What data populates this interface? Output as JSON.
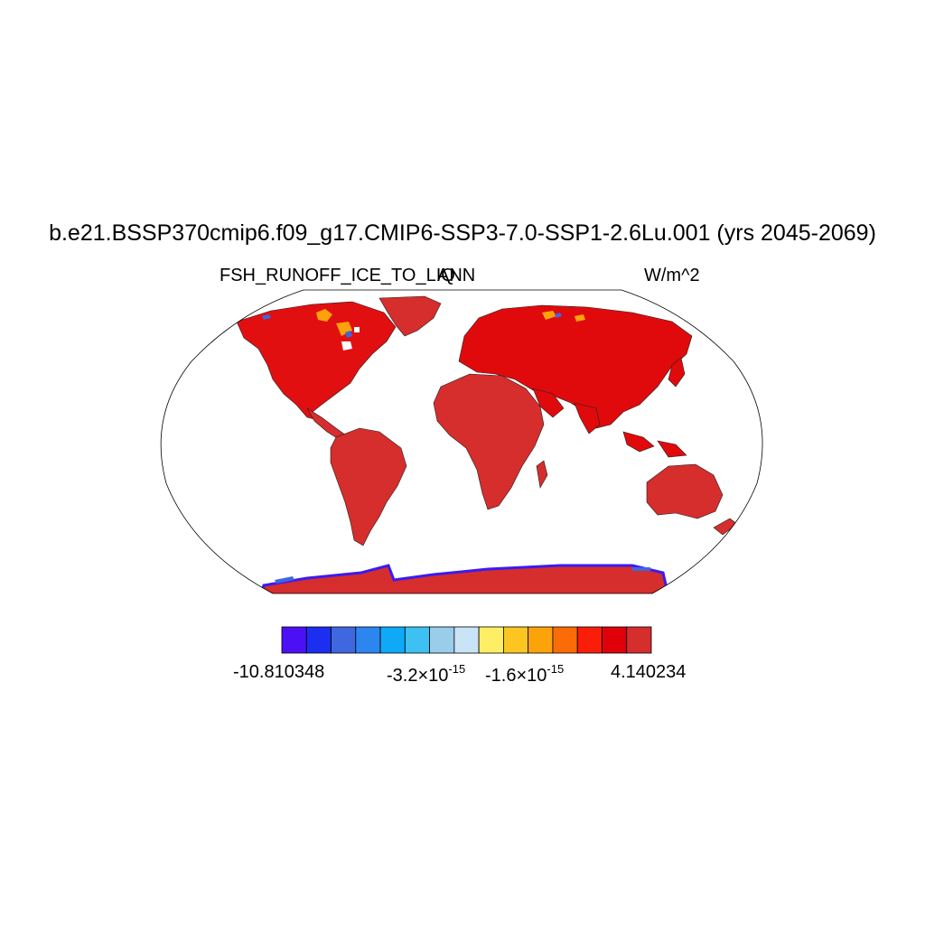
{
  "title": "b.e21.BSSP370cmip6.f09_g17.CMIP6-SSP3-7.0-SSP1-2.6Lu.001 (yrs 2045-2069)",
  "subtitle_left": "FSH_RUNOFF_ICE_TO_LIQ",
  "subtitle_center": "ANN",
  "subtitle_right": "W/m^2",
  "projection": "robinson",
  "land_fill_dominant": "#d62d2d",
  "colorbar": {
    "colors": [
      "#4b10f5",
      "#1c2ef0",
      "#3f67e0",
      "#2b86f0",
      "#0eaaf8",
      "#3ec0f2",
      "#99cdea",
      "#c8e4f6",
      "#fdee66",
      "#fcc520",
      "#fca30a",
      "#fb6c06",
      "#f81e0a",
      "#e0000a",
      "#d62d2d"
    ],
    "labels": {
      "min": "-10.810348",
      "mid1_base": "-3.2×10",
      "mid1_exp": "-15",
      "mid2_base": "-1.6×10",
      "mid2_exp": "-15",
      "max": "4.140234"
    }
  }
}
